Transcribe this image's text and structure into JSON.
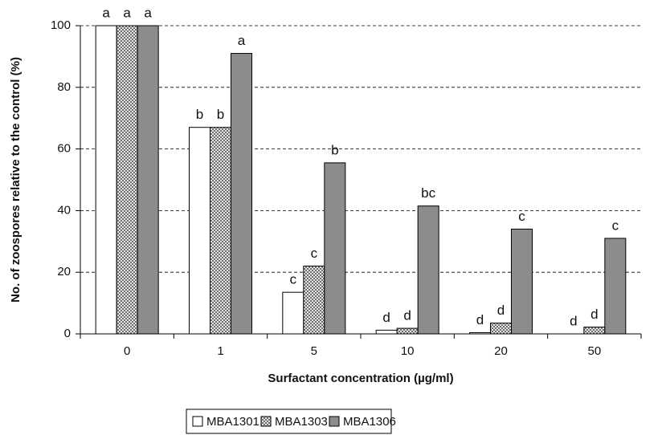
{
  "chart_data": {
    "type": "bar",
    "xlabel": "Surfactant concentration (µg/ml)",
    "ylabel": "No. of zoospores relative to the control (%)",
    "categories": [
      "0",
      "1",
      "5",
      "10",
      "20",
      "50"
    ],
    "series": [
      {
        "name": "MBA1301",
        "color": "#ffffff",
        "values": [
          100,
          67,
          13.5,
          1.2,
          0.4,
          0
        ],
        "letters": [
          "a",
          "b",
          "c",
          "d",
          "d",
          "d"
        ]
      },
      {
        "name": "MBA1303",
        "color": "#bdbdbd",
        "texture": "dots",
        "values": [
          100,
          67,
          22,
          1.8,
          3.5,
          2.2
        ],
        "letters": [
          "a",
          "b",
          "c",
          "d",
          "d",
          "d"
        ]
      },
      {
        "name": "MBA1306",
        "color": "#8c8c8c",
        "values": [
          100,
          91,
          55.5,
          41.5,
          34,
          31
        ],
        "letters": [
          "a",
          "a",
          "b",
          "bc",
          "c",
          "c"
        ]
      }
    ],
    "ylim": [
      0,
      100
    ],
    "yticks": [
      0,
      20,
      40,
      60,
      80,
      100
    ],
    "grid": true,
    "legend": "bottom"
  }
}
